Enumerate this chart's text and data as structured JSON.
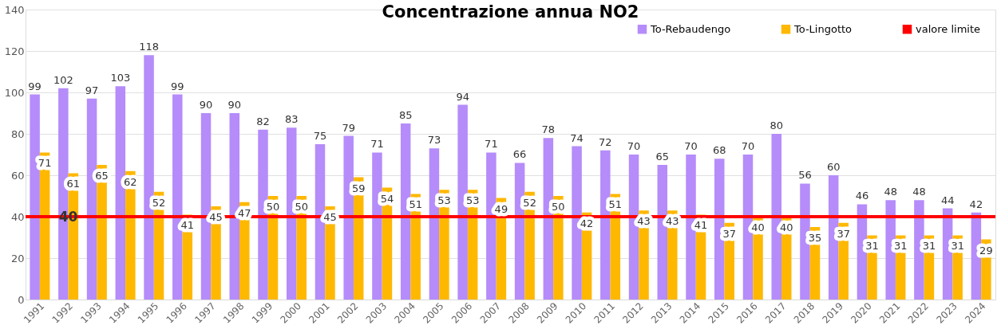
{
  "chart_data": {
    "type": "bar",
    "title": "Concentrazione annua NO2",
    "categories": [
      "1991",
      "1992",
      "1993",
      "1994",
      "1995",
      "1996",
      "1997",
      "1998",
      "1999",
      "2000",
      "2001",
      "2002",
      "2003",
      "2004",
      "2005",
      "2006",
      "2007",
      "2008",
      "2009",
      "2010",
      "2011",
      "2012",
      "2013",
      "2014",
      "2015",
      "2016",
      "2017",
      "2018",
      "2019",
      "2020",
      "2021",
      "2022",
      "2023",
      "2024"
    ],
    "series": [
      {
        "name": "To-Rebaudengo",
        "color": "#b58cfa",
        "values": [
          99,
          102,
          97,
          103,
          118,
          99,
          90,
          90,
          82,
          83,
          75,
          79,
          71,
          85,
          73,
          94,
          71,
          66,
          78,
          74,
          72,
          70,
          65,
          70,
          68,
          70,
          80,
          56,
          60,
          46,
          48,
          48,
          44,
          42
        ]
      },
      {
        "name": "To-Lingotto",
        "color": "#ffb800",
        "values": [
          71,
          61,
          65,
          62,
          52,
          41,
          45,
          47,
          50,
          50,
          45,
          59,
          54,
          51,
          53,
          53,
          49,
          52,
          50,
          42,
          51,
          43,
          43,
          41,
          37,
          40,
          40,
          35,
          37,
          31,
          31,
          31,
          31,
          29
        ]
      }
    ],
    "ref_lines": [
      {
        "axis": "y",
        "value": 40,
        "label": "valore limite",
        "color": "#ff0000"
      }
    ],
    "annotations": [
      {
        "text": "40",
        "x": "1992",
        "y": 40
      }
    ],
    "ylim": [
      0,
      140
    ],
    "yticks": [
      0,
      20,
      40,
      60,
      80,
      100,
      120,
      140
    ],
    "data_labels": true,
    "grid": "y",
    "legend": "top right"
  }
}
